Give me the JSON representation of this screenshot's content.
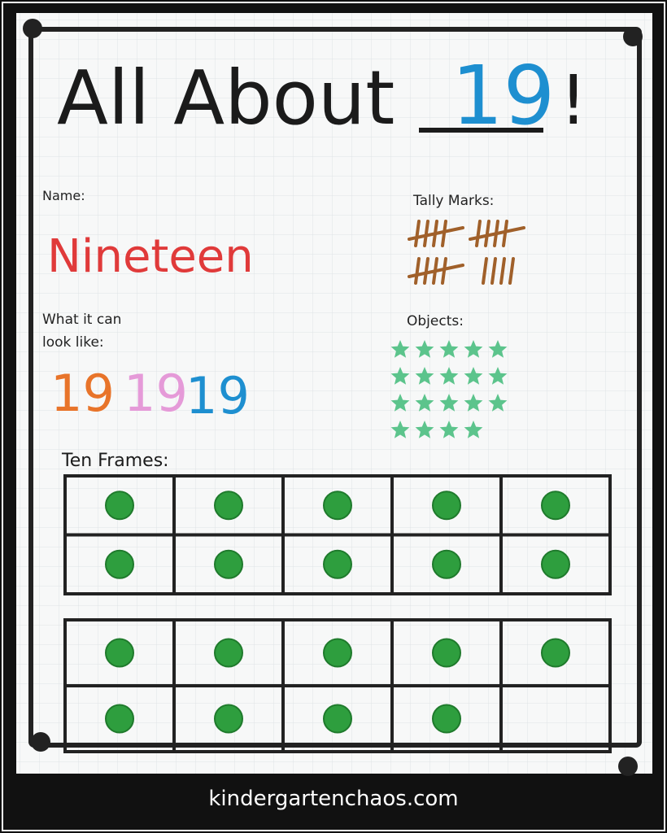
{
  "header": {
    "title": "All About",
    "number": "19",
    "mark": "!"
  },
  "name": {
    "label": "Name:",
    "value": "Nineteen"
  },
  "looks": {
    "label": [
      "What it can",
      "look like:"
    ],
    "forms": [
      "19",
      "19",
      "19"
    ]
  },
  "tally": {
    "label": "Tally Marks:"
  },
  "objects": {
    "label": "Objects:"
  },
  "frames": {
    "label": "Ten Frames:"
  },
  "footer": {
    "site": "kindergartenchaos.com"
  }
}
